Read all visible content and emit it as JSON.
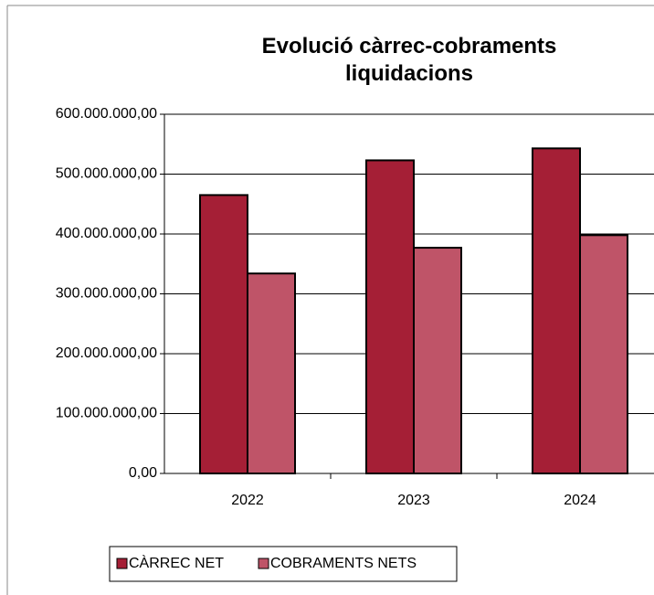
{
  "chart_data": {
    "type": "bar",
    "title": "Evolució càrrec-cobraments liquidacions",
    "categories": [
      "2022",
      "2023",
      "2024"
    ],
    "series": [
      {
        "name": "CÀRREC NET",
        "color": "#a51f36",
        "values": [
          465000000,
          523000000,
          543000000
        ]
      },
      {
        "name": "COBRAMENTS NETS",
        "color": "#bf5468",
        "values": [
          334000000,
          377000000,
          398000000
        ]
      }
    ],
    "ylim": [
      0,
      600000000
    ],
    "yticks": [
      {
        "value": 0,
        "label": "0,00"
      },
      {
        "value": 100000000,
        "label": "100.000.000,00"
      },
      {
        "value": 200000000,
        "label": "200.000.000,00"
      },
      {
        "value": 300000000,
        "label": "300.000.000,00"
      },
      {
        "value": 400000000,
        "label": "400.000.000,00"
      },
      {
        "value": 500000000,
        "label": "500.000.000,00"
      },
      {
        "value": 600000000,
        "label": "600.000.000,00"
      }
    ],
    "grid": true,
    "legend": "bottom"
  }
}
